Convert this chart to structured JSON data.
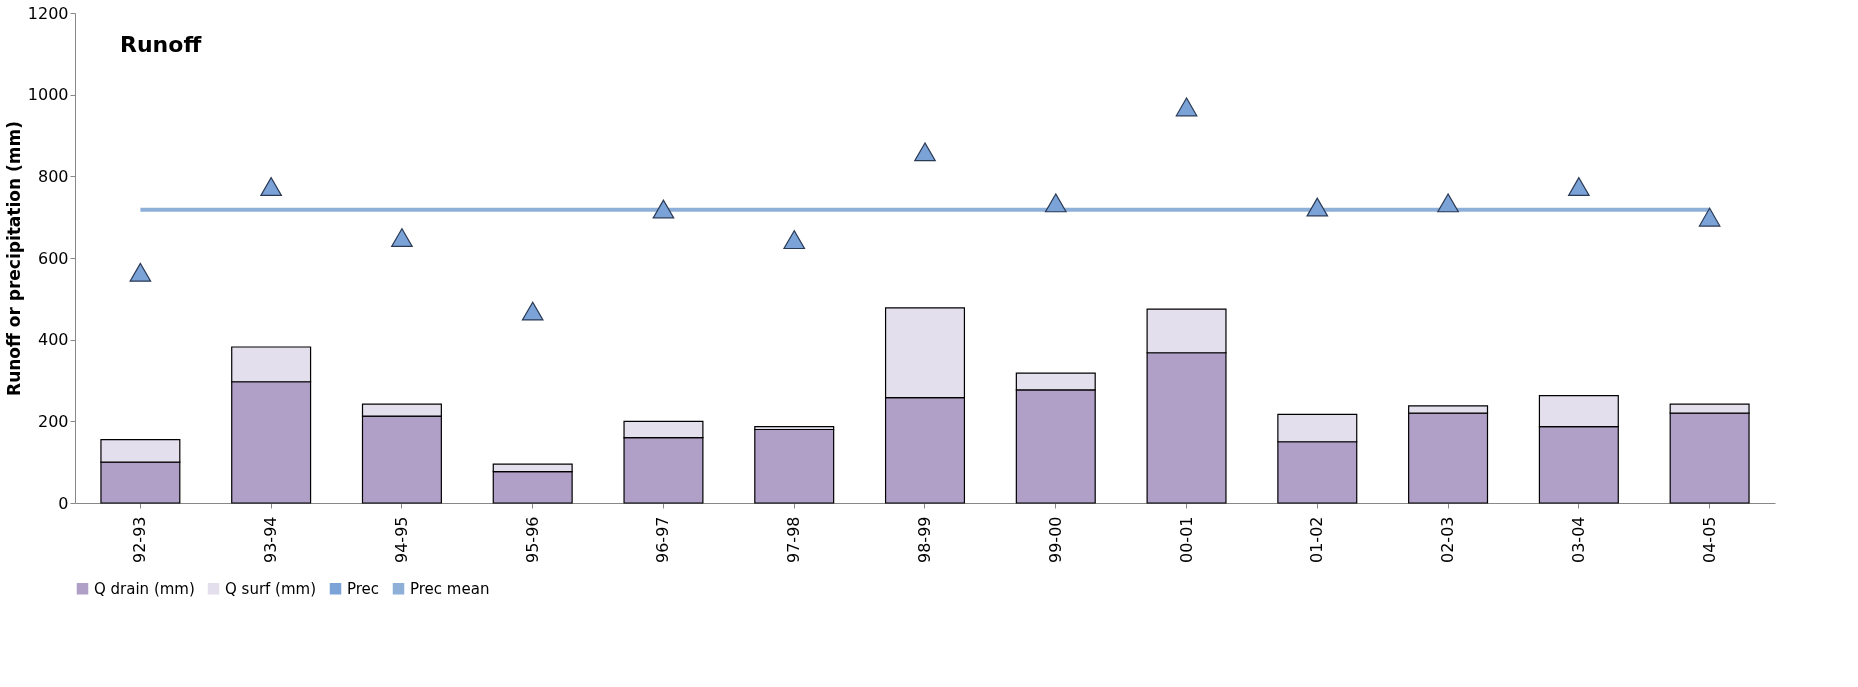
{
  "chart_data": {
    "type": "bar",
    "title": "Runoff",
    "ylabel": "Runoff or precipitation (mm)",
    "categories": [
      "92-93",
      "93-94",
      "94-95",
      "95-96",
      "96-97",
      "97-98",
      "98-99",
      "99-00",
      "00-01",
      "01-02",
      "02-03",
      "03-04",
      "04-05"
    ],
    "stacked": true,
    "ylim": [
      0,
      1200
    ],
    "yticks": [
      0,
      200,
      400,
      600,
      800,
      1000,
      1200
    ],
    "grid": false,
    "legend": "bottom",
    "series": [
      {
        "name": "Q drain (mm)",
        "color": "#b0a0c8",
        "values": [
          100,
          297,
          213,
          77,
          160,
          180,
          258,
          277,
          368,
          150,
          220,
          187,
          220
        ]
      },
      {
        "name": "Q surf (mm)",
        "color": "#e4dfec",
        "values": [
          55,
          85,
          29,
          18,
          40,
          7,
          220,
          41,
          107,
          67,
          18,
          76,
          22
        ]
      },
      {
        "name": "Prec",
        "type": "scatter",
        "marker": "triangle",
        "color": "#7ba3d8",
        "values": [
          565,
          775,
          650,
          470,
          720,
          645,
          860,
          735,
          970,
          725,
          735,
          775,
          700
        ]
      },
      {
        "name": "Prec mean",
        "type": "line",
        "line_style": "solid",
        "color": "#8eb0d8",
        "values": [
          718,
          718,
          718,
          718,
          718,
          718,
          718,
          718,
          718,
          718,
          718,
          718,
          718
        ]
      }
    ]
  }
}
